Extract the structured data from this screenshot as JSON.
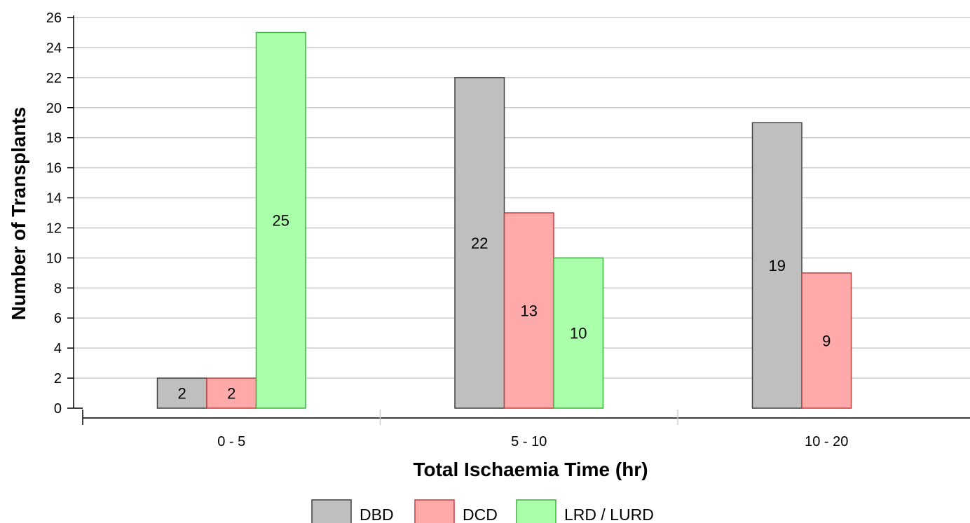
{
  "chart_data": {
    "type": "bar",
    "xlabel": "Total Ischaemia Time (hr)",
    "ylabel": "Number of Transplants",
    "categories": [
      "0 - 5",
      "5 - 10",
      "10 - 20"
    ],
    "series": [
      {
        "name": "DBD",
        "values": [
          2,
          22,
          19
        ],
        "color": "#bfbfbf",
        "stroke": "#404040"
      },
      {
        "name": "DCD",
        "values": [
          2,
          13,
          9
        ],
        "color": "#ffaaaa",
        "stroke": "#c04040"
      },
      {
        "name": "LRD / LURD",
        "values": [
          25,
          10,
          0
        ],
        "color": "#aaffaa",
        "stroke": "#40b040"
      }
    ],
    "ylim": [
      0,
      26
    ],
    "yticks": [
      0,
      2,
      4,
      6,
      8,
      10,
      12,
      14,
      16,
      18,
      20,
      22,
      24,
      26
    ],
    "grid": true,
    "legend": "bottom"
  }
}
